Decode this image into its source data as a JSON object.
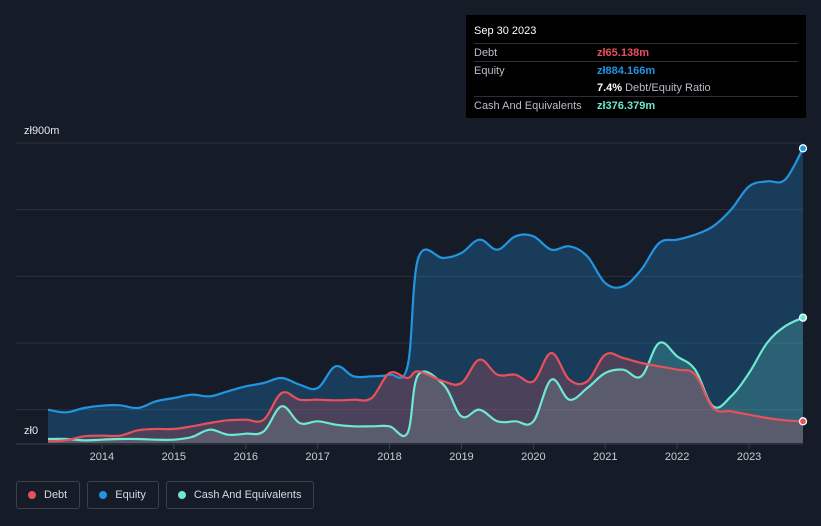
{
  "tooltip": {
    "date": "Sep 30 2023",
    "debt_label": "Debt",
    "debt_value": "zł65.138m",
    "equity_label": "Equity",
    "equity_value": "zł884.166m",
    "ratio_value": "7.4%",
    "ratio_label": "Debt/Equity Ratio",
    "cash_label": "Cash And Equivalents",
    "cash_value": "zł376.379m"
  },
  "legend": {
    "debt": "Debt",
    "equity": "Equity",
    "cash": "Cash And Equivalents"
  },
  "colors": {
    "debt": "#e8505b",
    "equity": "#2394df",
    "cash": "#6ee8d0",
    "background": "#151b27"
  },
  "chart_data": {
    "type": "area",
    "y_unit": "zł m",
    "ylim": [
      0,
      900
    ],
    "y_tick_labels": [
      "zł0",
      "zł900m"
    ],
    "x_tick_labels": [
      "2014",
      "2015",
      "2016",
      "2017",
      "2018",
      "2019",
      "2020",
      "2021",
      "2022",
      "2023"
    ],
    "xlim": [
      2013.25,
      2023.75
    ],
    "series": [
      {
        "name": "Equity",
        "key": "equity",
        "points": [
          [
            2013.25,
            100
          ],
          [
            2013.5,
            92
          ],
          [
            2013.75,
            105
          ],
          [
            2014.0,
            112
          ],
          [
            2014.25,
            113
          ],
          [
            2014.5,
            105
          ],
          [
            2014.75,
            125
          ],
          [
            2015.0,
            135
          ],
          [
            2015.25,
            145
          ],
          [
            2015.5,
            140
          ],
          [
            2015.75,
            155
          ],
          [
            2016.0,
            170
          ],
          [
            2016.25,
            180
          ],
          [
            2016.5,
            195
          ],
          [
            2016.75,
            175
          ],
          [
            2017.0,
            165
          ],
          [
            2017.25,
            230
          ],
          [
            2017.5,
            200
          ],
          [
            2017.75,
            200
          ],
          [
            2018.0,
            205
          ],
          [
            2018.25,
            230
          ],
          [
            2018.4,
            555
          ],
          [
            2018.75,
            555
          ],
          [
            2019.0,
            570
          ],
          [
            2019.25,
            610
          ],
          [
            2019.5,
            580
          ],
          [
            2019.75,
            620
          ],
          [
            2020.0,
            620
          ],
          [
            2020.25,
            580
          ],
          [
            2020.5,
            590
          ],
          [
            2020.75,
            560
          ],
          [
            2021.0,
            480
          ],
          [
            2021.25,
            470
          ],
          [
            2021.5,
            520
          ],
          [
            2021.75,
            600
          ],
          [
            2022.0,
            610
          ],
          [
            2022.25,
            625
          ],
          [
            2022.5,
            650
          ],
          [
            2022.75,
            700
          ],
          [
            2023.0,
            770
          ],
          [
            2023.25,
            785
          ],
          [
            2023.5,
            790
          ],
          [
            2023.75,
            884
          ]
        ]
      },
      {
        "name": "Cash And Equivalents",
        "key": "cash",
        "points": [
          [
            2013.25,
            12
          ],
          [
            2013.5,
            12
          ],
          [
            2013.75,
            8
          ],
          [
            2014.0,
            10
          ],
          [
            2014.25,
            12
          ],
          [
            2014.5,
            12
          ],
          [
            2014.75,
            10
          ],
          [
            2015.0,
            10
          ],
          [
            2015.25,
            18
          ],
          [
            2015.5,
            40
          ],
          [
            2015.75,
            25
          ],
          [
            2016.0,
            28
          ],
          [
            2016.25,
            35
          ],
          [
            2016.5,
            110
          ],
          [
            2016.75,
            60
          ],
          [
            2017.0,
            65
          ],
          [
            2017.25,
            55
          ],
          [
            2017.5,
            50
          ],
          [
            2017.75,
            50
          ],
          [
            2018.0,
            50
          ],
          [
            2018.25,
            30
          ],
          [
            2018.4,
            205
          ],
          [
            2018.75,
            175
          ],
          [
            2019.0,
            80
          ],
          [
            2019.25,
            100
          ],
          [
            2019.5,
            65
          ],
          [
            2019.75,
            65
          ],
          [
            2020.0,
            65
          ],
          [
            2020.25,
            190
          ],
          [
            2020.5,
            130
          ],
          [
            2020.75,
            165
          ],
          [
            2021.0,
            210
          ],
          [
            2021.25,
            220
          ],
          [
            2021.5,
            200
          ],
          [
            2021.75,
            300
          ],
          [
            2022.0,
            260
          ],
          [
            2022.25,
            220
          ],
          [
            2022.5,
            110
          ],
          [
            2022.75,
            140
          ],
          [
            2023.0,
            210
          ],
          [
            2023.25,
            300
          ],
          [
            2023.5,
            350
          ],
          [
            2023.75,
            376
          ]
        ]
      },
      {
        "name": "Debt",
        "key": "debt",
        "points": [
          [
            2013.25,
            5
          ],
          [
            2013.5,
            8
          ],
          [
            2013.75,
            20
          ],
          [
            2014.0,
            22
          ],
          [
            2014.25,
            22
          ],
          [
            2014.5,
            38
          ],
          [
            2014.75,
            42
          ],
          [
            2015.0,
            42
          ],
          [
            2015.25,
            50
          ],
          [
            2015.5,
            60
          ],
          [
            2015.75,
            68
          ],
          [
            2016.0,
            70
          ],
          [
            2016.25,
            70
          ],
          [
            2016.5,
            150
          ],
          [
            2016.75,
            130
          ],
          [
            2017.0,
            130
          ],
          [
            2017.25,
            128
          ],
          [
            2017.5,
            130
          ],
          [
            2017.75,
            135
          ],
          [
            2018.0,
            210
          ],
          [
            2018.25,
            195
          ],
          [
            2018.4,
            215
          ],
          [
            2018.75,
            185
          ],
          [
            2019.0,
            180
          ],
          [
            2019.25,
            250
          ],
          [
            2019.5,
            205
          ],
          [
            2019.75,
            205
          ],
          [
            2020.0,
            185
          ],
          [
            2020.25,
            270
          ],
          [
            2020.5,
            190
          ],
          [
            2020.75,
            185
          ],
          [
            2021.0,
            265
          ],
          [
            2021.25,
            255
          ],
          [
            2021.5,
            240
          ],
          [
            2021.75,
            230
          ],
          [
            2022.0,
            220
          ],
          [
            2022.25,
            205
          ],
          [
            2022.5,
            105
          ],
          [
            2022.75,
            95
          ],
          [
            2023.0,
            85
          ],
          [
            2023.25,
            75
          ],
          [
            2023.5,
            68
          ],
          [
            2023.75,
            65
          ]
        ]
      }
    ]
  }
}
